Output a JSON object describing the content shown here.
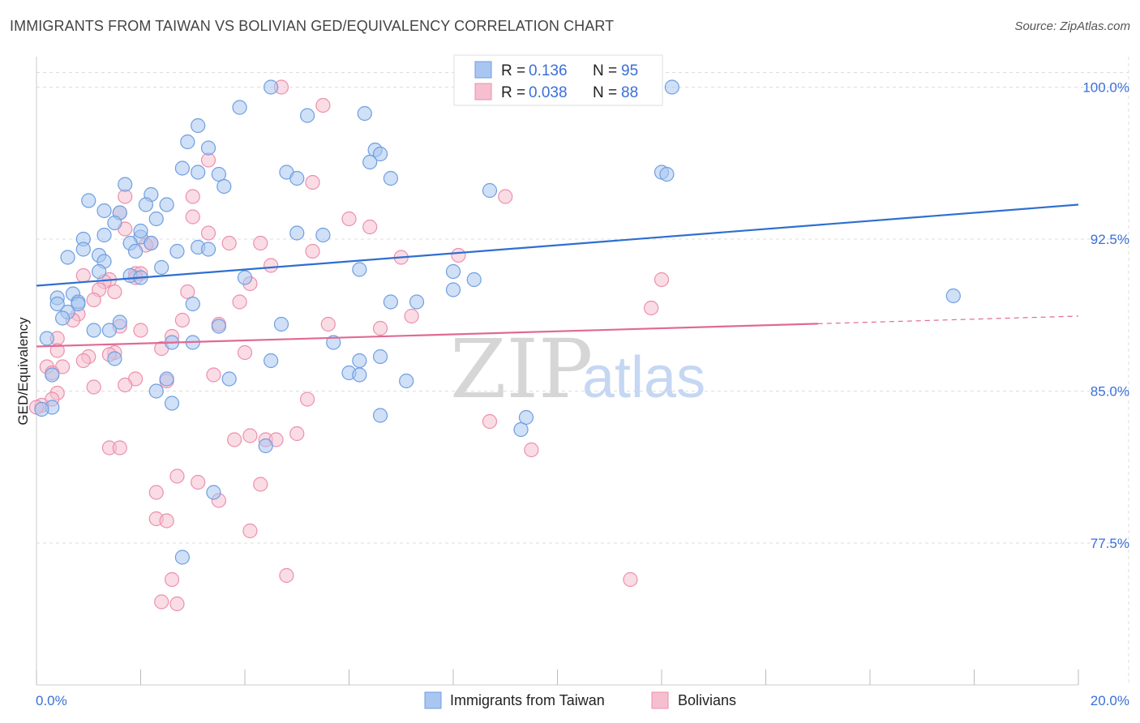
{
  "title": "IMMIGRANTS FROM TAIWAN VS BOLIVIAN GED/EQUIVALENCY CORRELATION CHART",
  "source": "Source: ZipAtlas.com",
  "watermark": {
    "zip": "ZIP",
    "atlas": "atlas"
  },
  "colors": {
    "blue_fill": "#a8c6f0",
    "blue_stroke": "#6f9ee0",
    "blue_line": "#2e6fd0",
    "pink_fill": "#f6bfd0",
    "pink_stroke": "#ec8fad",
    "pink_line": "#e06a94",
    "grid": "#dddddd",
    "axis_text": "#3a6fd8"
  },
  "legend": {
    "rows": [
      {
        "r_label": "R =",
        "r_value": "0.136",
        "n_label": "N =",
        "n_value": "95"
      },
      {
        "r_label": "R =",
        "r_value": "0.038",
        "n_label": "N =",
        "n_value": "88"
      }
    ]
  },
  "chart_data": {
    "type": "scatter",
    "title": "IMMIGRANTS FROM TAIWAN VS BOLIVIAN GED/EQUIVALENCY CORRELATION CHART",
    "xlabel": "",
    "ylabel": "GED/Equivalency",
    "xlim": [
      0,
      20
    ],
    "ylim": [
      70.5,
      101.5
    ],
    "x_tick_labels": [
      "0.0%",
      "20.0%"
    ],
    "y_ticks": [
      77.5,
      85.0,
      92.5,
      100.0
    ],
    "y_tick_labels": [
      "77.5%",
      "85.0%",
      "92.5%",
      "100.0%"
    ],
    "grid": true,
    "legend_position": "top-center",
    "series": [
      {
        "name": "Immigrants from Taiwan",
        "color": "#a8c6f0",
        "R": 0.136,
        "N": 95,
        "trend": {
          "x0": 0,
          "y0": 90.2,
          "x1": 20,
          "y1": 94.2
        },
        "points": [
          [
            4.5,
            100.0
          ],
          [
            12.2,
            100.0
          ],
          [
            3.9,
            99.0
          ],
          [
            5.2,
            98.6
          ],
          [
            6.3,
            98.7
          ],
          [
            3.1,
            98.1
          ],
          [
            2.9,
            97.3
          ],
          [
            3.3,
            97.0
          ],
          [
            6.5,
            96.9
          ],
          [
            6.6,
            96.7
          ],
          [
            6.4,
            96.3
          ],
          [
            2.8,
            96.0
          ],
          [
            3.1,
            95.8
          ],
          [
            3.5,
            95.7
          ],
          [
            4.8,
            95.8
          ],
          [
            5.0,
            95.5
          ],
          [
            6.8,
            95.5
          ],
          [
            12.0,
            95.8
          ],
          [
            12.1,
            95.7
          ],
          [
            3.6,
            95.1
          ],
          [
            1.7,
            95.2
          ],
          [
            2.2,
            94.7
          ],
          [
            2.5,
            94.2
          ],
          [
            1.0,
            94.4
          ],
          [
            2.1,
            94.2
          ],
          [
            8.7,
            94.9
          ],
          [
            1.3,
            93.9
          ],
          [
            1.6,
            93.8
          ],
          [
            1.5,
            93.3
          ],
          [
            2.3,
            93.5
          ],
          [
            1.3,
            92.7
          ],
          [
            2.0,
            92.6
          ],
          [
            2.0,
            92.9
          ],
          [
            5.0,
            92.8
          ],
          [
            5.5,
            92.7
          ],
          [
            0.9,
            92.5
          ],
          [
            1.8,
            92.3
          ],
          [
            2.2,
            92.3
          ],
          [
            3.1,
            92.1
          ],
          [
            3.3,
            92.0
          ],
          [
            2.7,
            91.9
          ],
          [
            0.9,
            92.0
          ],
          [
            1.9,
            91.9
          ],
          [
            0.6,
            91.6
          ],
          [
            1.2,
            91.7
          ],
          [
            1.3,
            91.4
          ],
          [
            1.2,
            90.9
          ],
          [
            2.4,
            91.1
          ],
          [
            6.2,
            91.0
          ],
          [
            8.0,
            90.9
          ],
          [
            8.4,
            90.5
          ],
          [
            4.0,
            90.6
          ],
          [
            1.8,
            90.7
          ],
          [
            2.0,
            90.6
          ],
          [
            8.0,
            90.0
          ],
          [
            17.6,
            89.7
          ],
          [
            0.4,
            89.6
          ],
          [
            0.7,
            89.8
          ],
          [
            0.4,
            89.3
          ],
          [
            0.8,
            89.4
          ],
          [
            0.8,
            89.3
          ],
          [
            0.6,
            88.9
          ],
          [
            3.0,
            89.3
          ],
          [
            6.8,
            89.4
          ],
          [
            7.3,
            89.4
          ],
          [
            0.5,
            88.6
          ],
          [
            1.6,
            88.4
          ],
          [
            3.5,
            88.2
          ],
          [
            4.7,
            88.3
          ],
          [
            1.1,
            88.0
          ],
          [
            1.4,
            88.0
          ],
          [
            0.2,
            87.6
          ],
          [
            2.6,
            87.4
          ],
          [
            3.0,
            87.4
          ],
          [
            6.6,
            86.7
          ],
          [
            1.5,
            86.6
          ],
          [
            4.5,
            86.5
          ],
          [
            0.3,
            85.8
          ],
          [
            6.0,
            85.9
          ],
          [
            6.2,
            85.8
          ],
          [
            7.1,
            85.5
          ],
          [
            2.5,
            85.6
          ],
          [
            3.7,
            85.6
          ],
          [
            2.3,
            85.0
          ],
          [
            2.6,
            84.4
          ],
          [
            0.3,
            84.2
          ],
          [
            0.1,
            84.1
          ],
          [
            6.6,
            83.8
          ],
          [
            9.4,
            83.7
          ],
          [
            9.3,
            83.1
          ],
          [
            4.4,
            82.3
          ],
          [
            3.4,
            80.0
          ],
          [
            2.8,
            76.8
          ],
          [
            6.2,
            86.5
          ],
          [
            5.7,
            87.4
          ]
        ]
      },
      {
        "name": "Bolivians",
        "color": "#f6bfd0",
        "R": 0.038,
        "N": 88,
        "trend": {
          "x0": 0,
          "y0": 87.2,
          "x1": 20,
          "y1": 88.7,
          "solid_until_x": 15.0
        },
        "points": [
          [
            4.7,
            100.0
          ],
          [
            5.5,
            99.1
          ],
          [
            3.3,
            96.4
          ],
          [
            5.3,
            95.3
          ],
          [
            1.7,
            94.6
          ],
          [
            3.0,
            94.6
          ],
          [
            9.0,
            94.6
          ],
          [
            1.6,
            93.8
          ],
          [
            3.0,
            93.6
          ],
          [
            6.0,
            93.5
          ],
          [
            6.4,
            93.1
          ],
          [
            1.7,
            93.0
          ],
          [
            3.3,
            92.8
          ],
          [
            2.2,
            92.3
          ],
          [
            2.1,
            92.2
          ],
          [
            3.7,
            92.3
          ],
          [
            4.3,
            92.3
          ],
          [
            5.3,
            91.9
          ],
          [
            7.0,
            91.6
          ],
          [
            8.1,
            91.7
          ],
          [
            4.5,
            91.2
          ],
          [
            1.9,
            90.8
          ],
          [
            2.0,
            90.8
          ],
          [
            1.4,
            90.5
          ],
          [
            1.3,
            90.4
          ],
          [
            1.9,
            90.6
          ],
          [
            4.1,
            90.3
          ],
          [
            0.9,
            90.7
          ],
          [
            1.2,
            90.0
          ],
          [
            2.9,
            89.9
          ],
          [
            12.0,
            90.5
          ],
          [
            11.8,
            89.1
          ],
          [
            3.9,
            89.4
          ],
          [
            1.1,
            89.5
          ],
          [
            1.5,
            89.9
          ],
          [
            0.8,
            88.8
          ],
          [
            0.7,
            88.5
          ],
          [
            2.8,
            88.5
          ],
          [
            5.6,
            88.3
          ],
          [
            6.6,
            88.1
          ],
          [
            3.5,
            88.3
          ],
          [
            1.6,
            88.2
          ],
          [
            7.2,
            88.7
          ],
          [
            2.0,
            88.0
          ],
          [
            2.6,
            87.7
          ],
          [
            0.4,
            87.6
          ],
          [
            0.4,
            87.0
          ],
          [
            2.4,
            87.1
          ],
          [
            1.5,
            86.9
          ],
          [
            4.0,
            86.9
          ],
          [
            1.0,
            86.7
          ],
          [
            0.9,
            86.5
          ],
          [
            1.4,
            86.8
          ],
          [
            0.2,
            86.2
          ],
          [
            0.5,
            86.2
          ],
          [
            0.3,
            85.9
          ],
          [
            3.4,
            85.8
          ],
          [
            2.5,
            85.5
          ],
          [
            1.9,
            85.6
          ],
          [
            1.7,
            85.3
          ],
          [
            1.1,
            85.2
          ],
          [
            0.4,
            84.9
          ],
          [
            0.3,
            84.6
          ],
          [
            5.2,
            84.6
          ],
          [
            0.1,
            84.3
          ],
          [
            0.0,
            84.2
          ],
          [
            8.7,
            83.5
          ],
          [
            5.0,
            82.9
          ],
          [
            4.1,
            82.8
          ],
          [
            3.8,
            82.6
          ],
          [
            4.4,
            82.6
          ],
          [
            4.6,
            82.6
          ],
          [
            1.4,
            82.2
          ],
          [
            1.6,
            82.2
          ],
          [
            9.5,
            82.1
          ],
          [
            2.7,
            80.8
          ],
          [
            3.1,
            80.5
          ],
          [
            4.3,
            80.4
          ],
          [
            2.3,
            80.0
          ],
          [
            3.5,
            79.6
          ],
          [
            2.3,
            78.7
          ],
          [
            2.5,
            78.6
          ],
          [
            4.1,
            78.1
          ],
          [
            4.8,
            75.9
          ],
          [
            2.6,
            75.7
          ],
          [
            11.4,
            75.7
          ],
          [
            2.7,
            74.5
          ],
          [
            2.4,
            74.6
          ]
        ]
      }
    ]
  },
  "bottom_legend": [
    {
      "label": "Immigrants from Taiwan"
    },
    {
      "label": "Bolivians"
    }
  ]
}
